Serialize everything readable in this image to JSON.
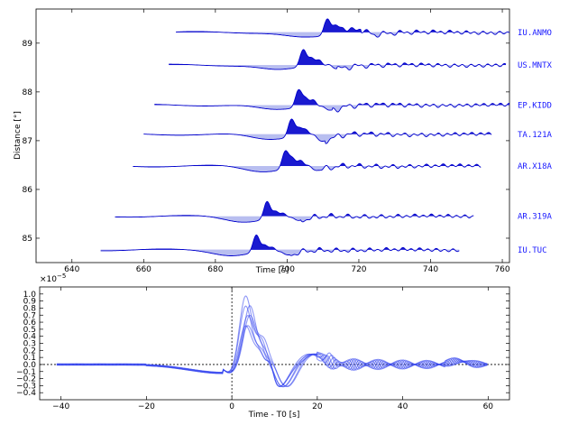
{
  "chart_data": [
    {
      "type": "line",
      "xlabel": "Time [s]",
      "ylabel": "Distance [°]",
      "xlim": [
        630,
        762
      ],
      "ylim": [
        84.5,
        89.7
      ],
      "xticks": [
        "640",
        "660",
        "680",
        "700",
        "720",
        "740",
        "760"
      ],
      "yticks": [
        "85",
        "86",
        "87",
        "88",
        "89"
      ],
      "color": "#0000cc",
      "fill_color": "#1a1ad0",
      "fill_light": "#b8bef0",
      "series": [
        {
          "name": "IU.ANMO",
          "distance": 89.22,
          "start": 669,
          "end": 762,
          "onset": 710.6,
          "pulses": [
            [
              711.2,
              1.0
            ],
            [
              713.5,
              0.65
            ],
            [
              715.5,
              0.55
            ],
            [
              718.0,
              0.6
            ],
            [
              720.3,
              0.45
            ],
            [
              722.5,
              0.2
            ]
          ],
          "trough": [
            717.0,
            -0.35,
            5
          ]
        },
        {
          "name": "US.MNTX",
          "distance": 88.55,
          "start": 667,
          "end": 761,
          "onset": 703.8,
          "pulses": [
            [
              704.5,
              1.0
            ],
            [
              706.8,
              0.55
            ],
            [
              709.0,
              0.5
            ],
            [
              711.6,
              0.3
            ]
          ],
          "trough": [
            711.0,
            -0.25,
            4
          ]
        },
        {
          "name": "EP.KIDD",
          "distance": 87.73,
          "start": 663,
          "end": 762,
          "onset": 702.5,
          "pulses": [
            [
              703.2,
              1.0
            ],
            [
              705.2,
              0.55
            ],
            [
              707.4,
              0.55
            ],
            [
              709.8,
              0.25
            ]
          ],
          "trough": [
            710.0,
            -0.3,
            4
          ]
        },
        {
          "name": "TA.121A",
          "distance": 87.13,
          "start": 660,
          "end": 757,
          "onset": 700.5,
          "pulses": [
            [
              701.2,
              1.0
            ],
            [
              703.4,
              0.5
            ],
            [
              705.3,
              0.5
            ],
            [
              707.5,
              0.35
            ]
          ],
          "trough": [
            708.8,
            -0.4,
            3.5
          ]
        },
        {
          "name": "AR.X18A",
          "distance": 86.48,
          "start": 657,
          "end": 754,
          "onset": 698.8,
          "pulses": [
            [
              699.5,
              1.0
            ],
            [
              701.5,
              0.6
            ],
            [
              703.8,
              0.55
            ],
            [
              706.0,
              0.3
            ]
          ],
          "trough": [
            706.5,
            -0.3,
            4
          ]
        },
        {
          "name": "AR.319A",
          "distance": 85.45,
          "start": 652,
          "end": 752,
          "onset": 693.7,
          "pulses": [
            [
              694.4,
              1.0
            ],
            [
              696.8,
              0.45
            ],
            [
              699.0,
              0.4
            ],
            [
              701.2,
              0.2
            ]
          ],
          "trough": [
            701.5,
            -0.3,
            4
          ]
        },
        {
          "name": "IU.TUC",
          "distance": 84.76,
          "start": 648,
          "end": 748,
          "onset": 690.7,
          "pulses": [
            [
              691.4,
              1.0
            ],
            [
              693.8,
              0.45
            ],
            [
              696.0,
              0.4
            ],
            [
              698.2,
              0.2
            ]
          ],
          "trough": [
            698.5,
            -0.35,
            4
          ]
        }
      ]
    },
    {
      "type": "line",
      "xlabel": "Time - T0 [s]",
      "ylabel": "",
      "exponent_label": "−5",
      "xlim": [
        -45,
        65
      ],
      "ylim": [
        -0.5,
        1.1
      ],
      "xticks": [
        "−40",
        "−20",
        "0",
        "20",
        "40",
        "60"
      ],
      "yticks": [
        "−0.4",
        "−0.3",
        "−0.2",
        "−0.1",
        "0.0",
        "0.1",
        "0.2",
        "0.3",
        "0.4",
        "0.5",
        "0.6",
        "0.7",
        "0.8",
        "0.9",
        "1.0"
      ],
      "ytick_values": [
        -0.4,
        -0.3,
        -0.2,
        -0.1,
        0.0,
        0.1,
        0.2,
        0.3,
        0.4,
        0.5,
        0.6,
        0.7,
        0.8,
        0.9,
        1.0
      ],
      "color": "#3344ee",
      "n_traces": 7,
      "time_start": -41,
      "time_end": 60,
      "vertical_line_at": 0,
      "horizontal_line_at": 0
    }
  ]
}
